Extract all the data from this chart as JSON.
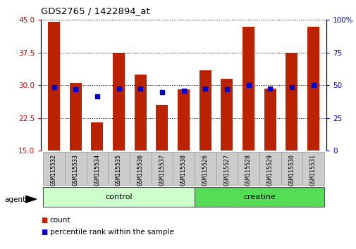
{
  "title": "GDS2765 / 1422894_at",
  "samples": [
    "GSM115532",
    "GSM115533",
    "GSM115534",
    "GSM115535",
    "GSM115536",
    "GSM115537",
    "GSM115538",
    "GSM115526",
    "GSM115527",
    "GSM115528",
    "GSM115529",
    "GSM115530",
    "GSM115531"
  ],
  "count_values": [
    44.5,
    30.5,
    21.5,
    37.5,
    32.5,
    25.5,
    29.0,
    33.5,
    31.5,
    43.5,
    29.3,
    37.5,
    43.5
  ],
  "percentile_values": [
    29.5,
    29.0,
    27.5,
    29.3,
    29.3,
    28.5,
    28.8,
    29.3,
    29.0,
    30.0,
    29.3,
    29.5,
    30.0
  ],
  "ylim_left": [
    15,
    45
  ],
  "ylim_right": [
    0,
    100
  ],
  "yticks_left": [
    15,
    22.5,
    30,
    37.5,
    45
  ],
  "yticks_right": [
    0,
    25,
    50,
    75,
    100
  ],
  "bar_color": "#bb2200",
  "dot_color": "#0000cc",
  "bar_width": 0.55,
  "control_indices": [
    0,
    1,
    2,
    3,
    4,
    5,
    6
  ],
  "creatine_indices": [
    7,
    8,
    9,
    10,
    11,
    12
  ],
  "control_color": "#ccffcc",
  "creatine_color": "#55dd55",
  "group_label_control": "control",
  "group_label_creatine": "creatine",
  "agent_label": "agent",
  "legend_count": "count",
  "legend_percentile": "percentile rank within the sample",
  "left_axis_color": "#cc0000",
  "right_axis_color": "#0000cc",
  "tick_area_color": "#cccccc",
  "fig_width": 5.06,
  "fig_height": 3.54,
  "dpi": 100
}
